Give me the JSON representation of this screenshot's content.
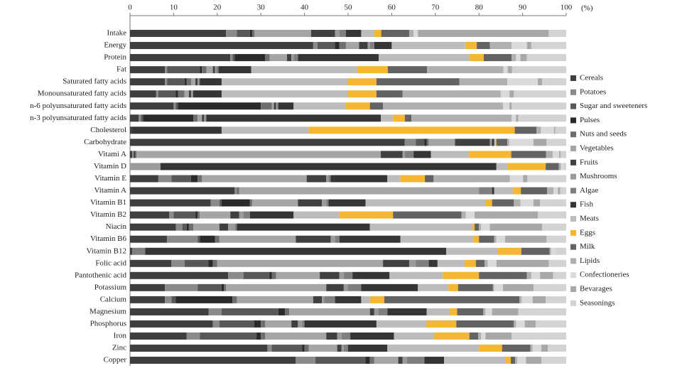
{
  "chart_data": {
    "type": "bar",
    "orientation": "horizontal",
    "stacked": true,
    "x_label": "(%)",
    "xlim": [
      0,
      100
    ],
    "xticks": [
      0,
      10,
      20,
      30,
      40,
      50,
      60,
      70,
      80,
      90,
      100
    ],
    "legend": "right",
    "categories": [
      "Intake",
      "Energy",
      "Protein",
      "Fat",
      "Saturated fatty acids",
      "Monounsaturated fatty acids",
      "n-6 polyunsaturated fatty acids",
      "n-3 polyunsaturated fatty acids",
      "Cholesterol",
      "Carbohydrate",
      "Vitami A",
      "Vitamin D",
      "Vitamin E",
      "Vitamin A",
      "Vitamin B1",
      "Vitamin B2",
      "Niacin",
      "Vitamin B6",
      "Vitamin B12",
      "Folic acid",
      "Pantothenic acid",
      "Potassium",
      "Calcium",
      "Magnesium",
      "Phosphorus",
      "Iron",
      "Zinc",
      "Copper"
    ],
    "series": [
      {
        "name": "Cereals",
        "color": "#3f3f3f",
        "values": [
          22,
          42,
          23,
          8,
          8,
          6,
          10,
          2,
          0.5,
          63,
          0.5,
          0,
          6.5,
          24,
          18.5,
          9,
          10.5,
          8.5,
          0.5,
          9.5,
          22.5,
          8,
          8,
          18,
          19,
          13,
          31.5,
          38
        ]
      },
      {
        "name": "Potatoes",
        "color": "#8a8a8a",
        "values": [
          2.5,
          1,
          0.5,
          0.5,
          0.5,
          0.5,
          0.5,
          0.5,
          0,
          2.5,
          0.3,
          0,
          3,
          0.5,
          2,
          1,
          1.5,
          7,
          0,
          3,
          3.5,
          7.5,
          1.5,
          3,
          1.5,
          3,
          1,
          4.5
        ]
      },
      {
        "name": "Sugar and sweeteners",
        "color": "#585858",
        "values": [
          3,
          4,
          0.5,
          7.5,
          4,
          4,
          0.5,
          0.5,
          0,
          2,
          0.2,
          0,
          4.5,
          0,
          0.5,
          5,
          1,
          0.5,
          0,
          5.5,
          6,
          5.5,
          1,
          13,
          8,
          13,
          7,
          11.5
        ]
      },
      {
        "name": "Pulses",
        "color": "#2a2a2a",
        "values": [
          0.5,
          1,
          7,
          0.5,
          0.5,
          0.5,
          19,
          11.5,
          0,
          0.5,
          0.2,
          0,
          1.5,
          0,
          6.5,
          0.5,
          0.5,
          3.5,
          0,
          1,
          0.5,
          0.5,
          13,
          1.5,
          1.5,
          1,
          0.5,
          1
        ]
      },
      {
        "name": "Nuts and seeds",
        "color": "#6e6e6e",
        "values": [
          0.5,
          1.5,
          1,
          1,
          1,
          1.5,
          2.5,
          1,
          0,
          0.5,
          0.3,
          0,
          1,
          0.5,
          0.5,
          0.5,
          1,
          1,
          0,
          1,
          1,
          0.5,
          1,
          1,
          1,
          1,
          1,
          1
        ]
      },
      {
        "name": "Vegetables",
        "color": "#a5a5a5",
        "values": [
          13,
          3,
          4,
          1.5,
          1,
          1,
          0.5,
          1,
          0,
          6,
          56,
          0,
          24,
          55,
          10.5,
          7,
          6,
          17.5,
          0,
          38,
          10,
          23,
          17.5,
          18.5,
          6,
          14,
          6.5,
          5.5
        ]
      },
      {
        "name": "Fruits",
        "color": "#404040",
        "values": [
          5.5,
          2,
          1,
          0.5,
          0.5,
          0.5,
          0.5,
          0.5,
          0,
          8,
          5,
          0,
          4.5,
          0,
          5.5,
          2,
          2,
          8,
          0,
          6,
          4.5,
          4,
          2,
          1,
          1.5,
          2.5,
          1,
          1
        ]
      },
      {
        "name": "Mushrooms",
        "color": "#9a9a9a",
        "values": [
          1,
          0.5,
          0.5,
          0.3,
          0.3,
          0.3,
          0.2,
          0.3,
          0,
          0.3,
          0.5,
          7,
          0.5,
          0,
          1,
          1,
          1.5,
          1,
          0,
          1.5,
          1,
          1,
          0.5,
          1,
          1,
          1,
          0.5,
          1
        ]
      },
      {
        "name": "Algae",
        "color": "#7f7f7f",
        "values": [
          1.5,
          1,
          1,
          0.5,
          0.2,
          0.2,
          0.3,
          0.2,
          0,
          0.2,
          2,
          0,
          0.5,
          3,
          0.5,
          1.5,
          0.5,
          1,
          3,
          3,
          2,
          3,
          2.5,
          2,
          0.5,
          2,
          1,
          4
        ]
      },
      {
        "name": "Fish",
        "color": "#353535",
        "values": [
          3.5,
          4,
          18.5,
          7.5,
          5,
          6.5,
          3.5,
          40,
          20.5,
          0.5,
          4,
          77,
          13,
          0.5,
          8.5,
          10,
          30.5,
          14,
          69,
          2,
          8.5,
          13,
          6,
          9,
          16.5,
          10,
          9,
          4.5
        ]
      },
      {
        "name": "Meats",
        "color": "#bcbcbc",
        "values": [
          3,
          17,
          20.8,
          24.3,
          29,
          29,
          12,
          2.8,
          20,
          0.3,
          8.7,
          2.5,
          3,
          4.3,
          27.6,
          10.5,
          23.5,
          16.7,
          11.7,
          6.2,
          12.2,
          7,
          2,
          5.3,
          11.5,
          9.2,
          21,
          14
        ]
      },
      {
        "name": "Eggs",
        "color": "#f5b731",
        "values": [
          1.6,
          2.5,
          3.3,
          7,
          6.5,
          6.5,
          5.5,
          2.7,
          47.2,
          0.2,
          9.7,
          8.8,
          5.6,
          1.8,
          1.4,
          12.3,
          0.5,
          1.3,
          5.5,
          2.6,
          8.3,
          2.2,
          3.3,
          1.7,
          6.8,
          8.1,
          5.3,
          1.3
        ]
      },
      {
        "name": "Milk",
        "color": "#636363",
        "values": [
          6.4,
          3,
          6.4,
          9,
          19,
          6,
          3,
          1.5,
          5,
          2.5,
          8,
          3,
          2,
          6,
          5,
          15.7,
          1,
          3.5,
          6.5,
          2,
          11,
          8,
          31,
          6,
          13.2,
          2,
          6.5,
          1
        ]
      },
      {
        "name": "Lipids",
        "color": "#b0b0b0",
        "values": [
          1,
          5,
          1,
          17.5,
          11,
          22.5,
          27.5,
          23,
          1,
          0.5,
          1.5,
          0.5,
          17.5,
          1.5,
          1.5,
          1,
          0.5,
          0.5,
          0.3,
          0.7,
          1,
          0.3,
          0.5,
          0.5,
          0.5,
          0.7,
          0.5,
          0.5
        ]
      },
      {
        "name": "Confectioneries",
        "color": "#dadada",
        "values": [
          1,
          3.5,
          1,
          1,
          7,
          2,
          1.5,
          1,
          3,
          5.5,
          1.5,
          0.5,
          3,
          1,
          3,
          2,
          2,
          2,
          1,
          2,
          2,
          2,
          2.5,
          1.5,
          2,
          1,
          2,
          2
        ]
      },
      {
        "name": "Bevarages",
        "color": "#a8a8a8",
        "values": [
          30,
          1,
          1.5,
          1,
          1,
          1,
          0.5,
          0.5,
          0.3,
          3,
          0.3,
          0,
          1,
          0.5,
          1.5,
          14.5,
          12,
          9.5,
          0,
          12,
          3,
          7,
          3,
          6,
          2.5,
          6,
          1.5,
          3.5
        ]
      },
      {
        "name": "Seasonings",
        "color": "#d3d3d3",
        "values": [
          4,
          8,
          9,
          12.4,
          5.5,
          12,
          12.5,
          11,
          2.5,
          4.5,
          1.3,
          0.7,
          8.9,
          1.4,
          6,
          6.5,
          5.5,
          4.5,
          2.5,
          4,
          3,
          7.5,
          4.7,
          11,
          7,
          12.5,
          4.2,
          5.7
        ]
      }
    ]
  }
}
